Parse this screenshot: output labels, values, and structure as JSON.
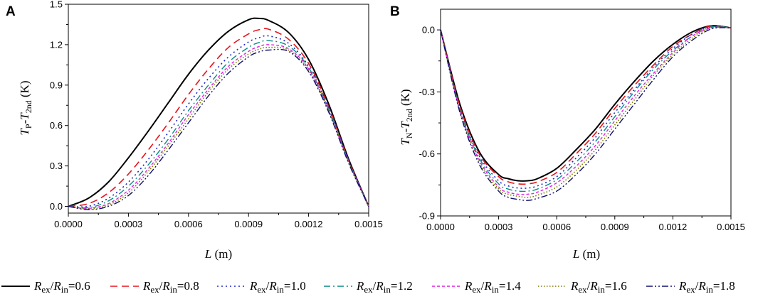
{
  "series_styles": [
    {
      "name": "Rex/Rin=0.6",
      "ratio": "0.6",
      "color": "#000000",
      "dash": "",
      "width": 2.0
    },
    {
      "name": "Rex/Rin=0.8",
      "ratio": "0.8",
      "color": "#e8131a",
      "dash": "10,6",
      "width": 1.6
    },
    {
      "name": "Rex/Rin=1.0",
      "ratio": "1.0",
      "color": "#1f27c8",
      "dash": "2,4",
      "width": 1.6
    },
    {
      "name": "Rex/Rin=1.2",
      "ratio": "1.2",
      "color": "#0a8a8a",
      "dash": "9,4,2,4",
      "width": 1.4
    },
    {
      "name": "Rex/Rin=1.4",
      "ratio": "1.4",
      "color": "#e020e0",
      "dash": "4,3",
      "width": 1.4
    },
    {
      "name": "Rex/Rin=1.6",
      "ratio": "1.6",
      "color": "#7a7a00",
      "dash": "1.5,2.5",
      "width": 1.6
    },
    {
      "name": "Rex/Rin=1.8",
      "ratio": "1.8",
      "color": "#101070",
      "dash": "9,3,2,3,2,3",
      "width": 1.4
    }
  ],
  "legend": {
    "symbol_R": "R",
    "sub_ex": "ex",
    "sub_in": "in",
    "slash": "/",
    "equals": "="
  },
  "chart_data": [
    {
      "panel": "A",
      "type": "line",
      "xlabel_italic": "L",
      "xlabel_rest": " (m)",
      "ylabel": {
        "T1": "T",
        "sub1": "P",
        "dash": "-",
        "T2": "T",
        "sub2": "2nd",
        "unit": "  (K)"
      },
      "xlim": [
        0,
        0.0015
      ],
      "ylim": [
        -0.05,
        1.5
      ],
      "xticks": [
        0,
        0.0003,
        0.0006,
        0.0009,
        0.0012,
        0.0015
      ],
      "xtick_labels": [
        "0.0000",
        "0.0003",
        "0.0006",
        "0.0009",
        "0.0012",
        "0.0015"
      ],
      "yticks": [
        0,
        0.3,
        0.6,
        0.9,
        1.2,
        1.5
      ],
      "ytick_labels": [
        "0.0",
        "0.3",
        "0.6",
        "0.9",
        "1.2",
        "1.5"
      ],
      "x": [
        0,
        0.0001,
        0.0002,
        0.0003,
        0.0004,
        0.0005,
        0.0006,
        0.0007,
        0.0008,
        0.0009,
        0.00095,
        0.001,
        0.0011,
        0.0012,
        0.0013,
        0.0014,
        0.0015
      ],
      "series": [
        {
          "name": "Rex/Rin=0.6",
          "values": [
            0,
            0.06,
            0.18,
            0.36,
            0.56,
            0.77,
            0.98,
            1.16,
            1.3,
            1.385,
            1.395,
            1.38,
            1.29,
            1.09,
            0.76,
            0.35,
            0
          ]
        },
        {
          "name": "Rex/Rin=0.8",
          "values": [
            0,
            0.02,
            0.1,
            0.24,
            0.42,
            0.62,
            0.83,
            1.02,
            1.18,
            1.28,
            1.31,
            1.315,
            1.24,
            1.06,
            0.74,
            0.34,
            0
          ]
        },
        {
          "name": "Rex/Rin=1.0",
          "values": [
            0,
            0.0,
            0.06,
            0.18,
            0.35,
            0.55,
            0.76,
            0.95,
            1.11,
            1.22,
            1.25,
            1.265,
            1.21,
            1.04,
            0.73,
            0.34,
            0
          ]
        },
        {
          "name": "Rex/Rin=1.2",
          "values": [
            0,
            -0.01,
            0.04,
            0.15,
            0.31,
            0.5,
            0.71,
            0.9,
            1.07,
            1.18,
            1.215,
            1.23,
            1.19,
            1.03,
            0.72,
            0.33,
            0
          ]
        },
        {
          "name": "Rex/Rin=1.4",
          "values": [
            0,
            -0.015,
            0.02,
            0.12,
            0.28,
            0.47,
            0.68,
            0.87,
            1.04,
            1.15,
            1.185,
            1.2,
            1.17,
            1.02,
            0.71,
            0.33,
            0
          ]
        },
        {
          "name": "Rex/Rin=1.6",
          "values": [
            0,
            -0.02,
            0.01,
            0.1,
            0.26,
            0.45,
            0.65,
            0.85,
            1.02,
            1.13,
            1.165,
            1.18,
            1.16,
            1.01,
            0.71,
            0.33,
            0
          ]
        },
        {
          "name": "Rex/Rin=1.8",
          "values": [
            0,
            -0.025,
            0.0,
            0.08,
            0.23,
            0.42,
            0.62,
            0.82,
            0.99,
            1.11,
            1.145,
            1.16,
            1.15,
            1.0,
            0.7,
            0.32,
            0
          ]
        }
      ]
    },
    {
      "panel": "B",
      "type": "line",
      "xlabel_italic": "L",
      "xlabel_rest": " (m)",
      "ylabel": {
        "T1": "T",
        "sub1": "N",
        "dash": "-",
        "T2": "T",
        "sub2": "2nd",
        "unit": "  (K)"
      },
      "xlim": [
        0,
        0.0015
      ],
      "ylim": [
        -0.9,
        0.1
      ],
      "xticks": [
        0,
        0.0003,
        0.0006,
        0.0009,
        0.0012,
        0.0015
      ],
      "xtick_labels": [
        "0.0000",
        "0.0003",
        "0.0006",
        "0.0009",
        "0.0012",
        "0.0015"
      ],
      "yticks": [
        0,
        -0.3,
        -0.6,
        -0.9
      ],
      "ytick_labels": [
        "0.0",
        "-0.3",
        "-0.6",
        "-0.9"
      ],
      "x": [
        0,
        0.0001,
        0.0002,
        0.0003,
        0.00035,
        0.0004,
        0.00045,
        0.0005,
        0.0006,
        0.0007,
        0.0008,
        0.0009,
        0.001,
        0.0011,
        0.0012,
        0.0013,
        0.0014,
        0.0015
      ],
      "series": [
        {
          "name": "Rex/Rin=0.6",
          "values": [
            0,
            -0.36,
            -0.59,
            -0.7,
            -0.72,
            -0.73,
            -0.73,
            -0.72,
            -0.67,
            -0.58,
            -0.48,
            -0.36,
            -0.25,
            -0.15,
            -0.07,
            -0.01,
            0.02,
            0.01
          ]
        },
        {
          "name": "Rex/Rin=0.8",
          "values": [
            0,
            -0.37,
            -0.6,
            -0.71,
            -0.735,
            -0.745,
            -0.745,
            -0.735,
            -0.69,
            -0.6,
            -0.5,
            -0.38,
            -0.27,
            -0.17,
            -0.08,
            -0.02,
            0.02,
            0.01
          ]
        },
        {
          "name": "Rex/Rin=1.0",
          "values": [
            0,
            -0.38,
            -0.61,
            -0.73,
            -0.755,
            -0.765,
            -0.765,
            -0.755,
            -0.71,
            -0.62,
            -0.52,
            -0.4,
            -0.29,
            -0.18,
            -0.09,
            -0.02,
            0.015,
            0.01
          ]
        },
        {
          "name": "Rex/Rin=1.2",
          "values": [
            0,
            -0.385,
            -0.62,
            -0.745,
            -0.77,
            -0.78,
            -0.78,
            -0.77,
            -0.725,
            -0.64,
            -0.54,
            -0.42,
            -0.3,
            -0.19,
            -0.1,
            -0.03,
            0.015,
            0.01
          ]
        },
        {
          "name": "Rex/Rin=1.4",
          "values": [
            0,
            -0.39,
            -0.63,
            -0.76,
            -0.785,
            -0.795,
            -0.795,
            -0.785,
            -0.74,
            -0.66,
            -0.56,
            -0.44,
            -0.32,
            -0.21,
            -0.11,
            -0.03,
            0.01,
            0.01
          ]
        },
        {
          "name": "Rex/Rin=1.6",
          "values": [
            0,
            -0.395,
            -0.64,
            -0.77,
            -0.795,
            -0.805,
            -0.81,
            -0.8,
            -0.76,
            -0.68,
            -0.58,
            -0.46,
            -0.34,
            -0.22,
            -0.12,
            -0.04,
            0.01,
            0.01
          ]
        },
        {
          "name": "Rex/Rin=1.8",
          "values": [
            0,
            -0.4,
            -0.65,
            -0.78,
            -0.81,
            -0.82,
            -0.825,
            -0.815,
            -0.78,
            -0.7,
            -0.6,
            -0.48,
            -0.36,
            -0.24,
            -0.13,
            -0.05,
            0.005,
            0.01
          ]
        }
      ]
    }
  ]
}
